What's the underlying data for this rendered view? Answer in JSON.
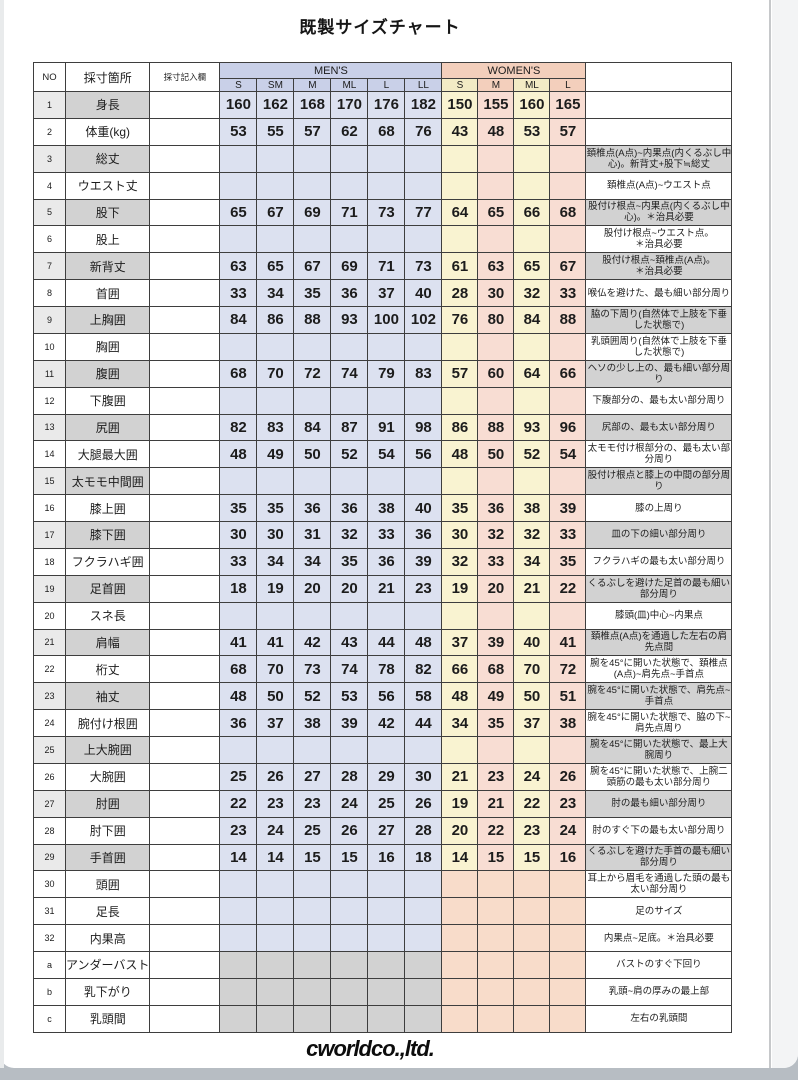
{
  "title": "既製サイズチャート",
  "header": {
    "no": "NO",
    "location": "採寸箇所",
    "entry": "採寸記入欄",
    "mens": "MEN'S",
    "womens": "WOMEN'S",
    "mens_sizes": [
      "S",
      "SM",
      "M",
      "ML",
      "L",
      "LL"
    ],
    "womens_sizes": [
      "S",
      "M",
      "ML",
      "L"
    ]
  },
  "colors": {
    "mens_header": "#c9d0e8",
    "mens_cell": "#dce1f0",
    "womens_header_pink": "#f3cfbc",
    "womens_header_cream": "#f2ebc5",
    "womens_cream": "#f9f3d1",
    "womens_pink": "#f8ddd3",
    "womens_peach": "#f8dcca",
    "shade_gray": "#d2d2d2",
    "mens_na_gray": "#d2d2d2"
  },
  "rows": [
    {
      "no": "1",
      "label": "身長",
      "mens": [
        "160",
        "162",
        "168",
        "170",
        "176",
        "182"
      ],
      "womens": [
        "150",
        "155",
        "160",
        "165"
      ],
      "note": null
    },
    {
      "no": "2",
      "label": "体重(kg)",
      "mens": [
        "53",
        "55",
        "57",
        "62",
        "68",
        "76"
      ],
      "womens": [
        "43",
        "48",
        "53",
        "57"
      ],
      "note": null
    },
    {
      "no": "3",
      "label": "総丈",
      "mens": [
        "",
        "",
        "",
        "",
        "",
        ""
      ],
      "womens": [
        "",
        "",
        "",
        ""
      ],
      "note": "頚椎点(A点)~内果点(内くるぶし中心)。新背丈+股下≒総丈"
    },
    {
      "no": "4",
      "label": "ウエスト丈",
      "mens": [
        "",
        "",
        "",
        "",
        "",
        ""
      ],
      "womens": [
        "",
        "",
        "",
        ""
      ],
      "note": "頚椎点(A点)~ウエスト点"
    },
    {
      "no": "5",
      "label": "股下",
      "mens": [
        "65",
        "67",
        "69",
        "71",
        "73",
        "77"
      ],
      "womens": [
        "64",
        "65",
        "66",
        "68"
      ],
      "note": "股付け根点~内果点(内くるぶし中心)。＊治具必要"
    },
    {
      "no": "6",
      "label": "股上",
      "mens": [
        "",
        "",
        "",
        "",
        "",
        ""
      ],
      "womens": [
        "",
        "",
        "",
        ""
      ],
      "note": "股付け根点~ウエスト点。\n＊治具必要"
    },
    {
      "no": "7",
      "label": "新背丈",
      "mens": [
        "63",
        "65",
        "67",
        "69",
        "71",
        "73"
      ],
      "womens": [
        "61",
        "63",
        "65",
        "67"
      ],
      "note": "股付け根点~頚椎点(A点)。\n＊治具必要"
    },
    {
      "no": "8",
      "label": "首囲",
      "mens": [
        "33",
        "34",
        "35",
        "36",
        "37",
        "40"
      ],
      "womens": [
        "28",
        "30",
        "32",
        "33"
      ],
      "note": "喉仏を避けた、最も細い部分周り"
    },
    {
      "no": "9",
      "label": "上胸囲",
      "mens": [
        "84",
        "86",
        "88",
        "93",
        "100",
        "102"
      ],
      "womens": [
        "76",
        "80",
        "84",
        "88"
      ],
      "note": "脇の下周り(自然体で上肢を下垂した状態で)"
    },
    {
      "no": "10",
      "label": "胸囲",
      "mens": [
        "",
        "",
        "",
        "",
        "",
        ""
      ],
      "womens": [
        "",
        "",
        "",
        ""
      ],
      "note": "乳頭囲周り(自然体で上肢を下垂した状態で)"
    },
    {
      "no": "11",
      "label": "腹囲",
      "mens": [
        "68",
        "70",
        "72",
        "74",
        "79",
        "83"
      ],
      "womens": [
        "57",
        "60",
        "64",
        "66"
      ],
      "note": "ヘソの少し上の、最も細い部分周り"
    },
    {
      "no": "12",
      "label": "下腹囲",
      "mens": [
        "",
        "",
        "",
        "",
        "",
        ""
      ],
      "womens": [
        "",
        "",
        "",
        ""
      ],
      "note": "下腹部分の、最も太い部分周り"
    },
    {
      "no": "13",
      "label": "尻囲",
      "mens": [
        "82",
        "83",
        "84",
        "87",
        "91",
        "98"
      ],
      "womens": [
        "86",
        "88",
        "93",
        "96"
      ],
      "note": "尻部の、最も太い部分周り"
    },
    {
      "no": "14",
      "label": "大腿最大囲",
      "mens": [
        "48",
        "49",
        "50",
        "52",
        "54",
        "56"
      ],
      "womens": [
        "48",
        "50",
        "52",
        "54"
      ],
      "note": "太モモ付け根部分の、最も太い部分周り"
    },
    {
      "no": "15",
      "label": "太モモ中間囲",
      "mens": [
        "",
        "",
        "",
        "",
        "",
        ""
      ],
      "womens": [
        "",
        "",
        "",
        ""
      ],
      "note": "股付け根点と膝上の中間の部分周り"
    },
    {
      "no": "16",
      "label": "膝上囲",
      "mens": [
        "35",
        "35",
        "36",
        "36",
        "38",
        "40"
      ],
      "womens": [
        "35",
        "36",
        "38",
        "39"
      ],
      "note": "膝の上周り"
    },
    {
      "no": "17",
      "label": "膝下囲",
      "mens": [
        "30",
        "30",
        "31",
        "32",
        "33",
        "36"
      ],
      "womens": [
        "30",
        "32",
        "32",
        "33"
      ],
      "note": "皿の下の細い部分周り"
    },
    {
      "no": "18",
      "label": "フクラハギ囲",
      "mens": [
        "33",
        "34",
        "34",
        "35",
        "36",
        "39"
      ],
      "womens": [
        "32",
        "33",
        "34",
        "35"
      ],
      "note": "フクラハギの最も太い部分周り"
    },
    {
      "no": "19",
      "label": "足首囲",
      "mens": [
        "18",
        "19",
        "20",
        "20",
        "21",
        "23"
      ],
      "womens": [
        "19",
        "20",
        "21",
        "22"
      ],
      "note": "くるぶしを避けた足首の最も細い部分周り"
    },
    {
      "no": "20",
      "label": "スネ長",
      "mens": [
        "",
        "",
        "",
        "",
        "",
        ""
      ],
      "womens": [
        "",
        "",
        "",
        ""
      ],
      "note": "膝頭(皿)中心~内果点"
    },
    {
      "no": "21",
      "label": "肩幅",
      "mens": [
        "41",
        "41",
        "42",
        "43",
        "44",
        "48"
      ],
      "womens": [
        "37",
        "39",
        "40",
        "41"
      ],
      "note": "頚椎点(A点)を通過した左右の肩先点間"
    },
    {
      "no": "22",
      "label": "桁丈",
      "mens": [
        "68",
        "70",
        "73",
        "74",
        "78",
        "82"
      ],
      "womens": [
        "66",
        "68",
        "70",
        "72"
      ],
      "note": "腕を45°に開いた状態で、頚椎点(A点)~肩先点~手首点"
    },
    {
      "no": "23",
      "label": "袖丈",
      "mens": [
        "48",
        "50",
        "52",
        "53",
        "56",
        "58"
      ],
      "womens": [
        "48",
        "49",
        "50",
        "51"
      ],
      "note": "腕を45°に開いた状態で、肩先点~手首点"
    },
    {
      "no": "24",
      "label": "腕付け根囲",
      "mens": [
        "36",
        "37",
        "38",
        "39",
        "42",
        "44"
      ],
      "womens": [
        "34",
        "35",
        "37",
        "38"
      ],
      "note": "腕を45°に開いた状態で、脇の下~肩先点周り"
    },
    {
      "no": "25",
      "label": "上大腕囲",
      "mens": [
        "",
        "",
        "",
        "",
        "",
        ""
      ],
      "womens": [
        "",
        "",
        "",
        ""
      ],
      "note": "腕を45°に開いた状態で、最上大腕周り"
    },
    {
      "no": "26",
      "label": "大腕囲",
      "mens": [
        "25",
        "26",
        "27",
        "28",
        "29",
        "30"
      ],
      "womens": [
        "21",
        "23",
        "24",
        "26"
      ],
      "note": "腕を45°に開いた状態で、上腕二頭筋の最も太い部分周り"
    },
    {
      "no": "27",
      "label": "肘囲",
      "mens": [
        "22",
        "23",
        "23",
        "24",
        "25",
        "26"
      ],
      "womens": [
        "19",
        "21",
        "22",
        "23"
      ],
      "note": "肘の最も細い部分周り"
    },
    {
      "no": "28",
      "label": "肘下囲",
      "mens": [
        "23",
        "24",
        "25",
        "26",
        "27",
        "28"
      ],
      "womens": [
        "20",
        "22",
        "23",
        "24"
      ],
      "note": "肘のすぐ下の最も太い部分周り"
    },
    {
      "no": "29",
      "label": "手首囲",
      "mens": [
        "14",
        "14",
        "15",
        "15",
        "16",
        "18"
      ],
      "womens": [
        "14",
        "15",
        "15",
        "16"
      ],
      "note": "くるぶしを避けた手首の最も細い部分周り"
    },
    {
      "no": "30",
      "label": "頭囲",
      "mens": [
        "",
        "",
        "",
        "",
        "",
        ""
      ],
      "womens": [
        "",
        "",
        "",
        ""
      ],
      "note": "耳上から眉毛を通過した頭の最も太い部分周り"
    },
    {
      "no": "31",
      "label": "足長",
      "mens": [
        "",
        "",
        "",
        "",
        "",
        ""
      ],
      "womens": [
        "",
        "",
        "",
        ""
      ],
      "note": "足のサイズ"
    },
    {
      "no": "32",
      "label": "内果高",
      "mens": [
        "",
        "",
        "",
        "",
        "",
        ""
      ],
      "womens": [
        "",
        "",
        "",
        ""
      ],
      "note": "内果点~足底。＊治具必要"
    },
    {
      "no": "a",
      "label": "アンダーバスト",
      "mens": [
        "",
        "",
        "",
        "",
        "",
        ""
      ],
      "womens": [
        "",
        "",
        "",
        ""
      ],
      "note": "バストのすぐ下回り"
    },
    {
      "no": "b",
      "label": "乳下がり",
      "mens": [
        "",
        "",
        "",
        "",
        "",
        ""
      ],
      "womens": [
        "",
        "",
        "",
        ""
      ],
      "note": "乳頭~肩の厚みの最上部"
    },
    {
      "no": "c",
      "label": "乳頭間",
      "mens": [
        "",
        "",
        "",
        "",
        "",
        ""
      ],
      "womens": [
        "",
        "",
        "",
        ""
      ],
      "note": "左右の乳頭間"
    }
  ],
  "footer": {
    "logo": "cworldco.,ltd."
  }
}
